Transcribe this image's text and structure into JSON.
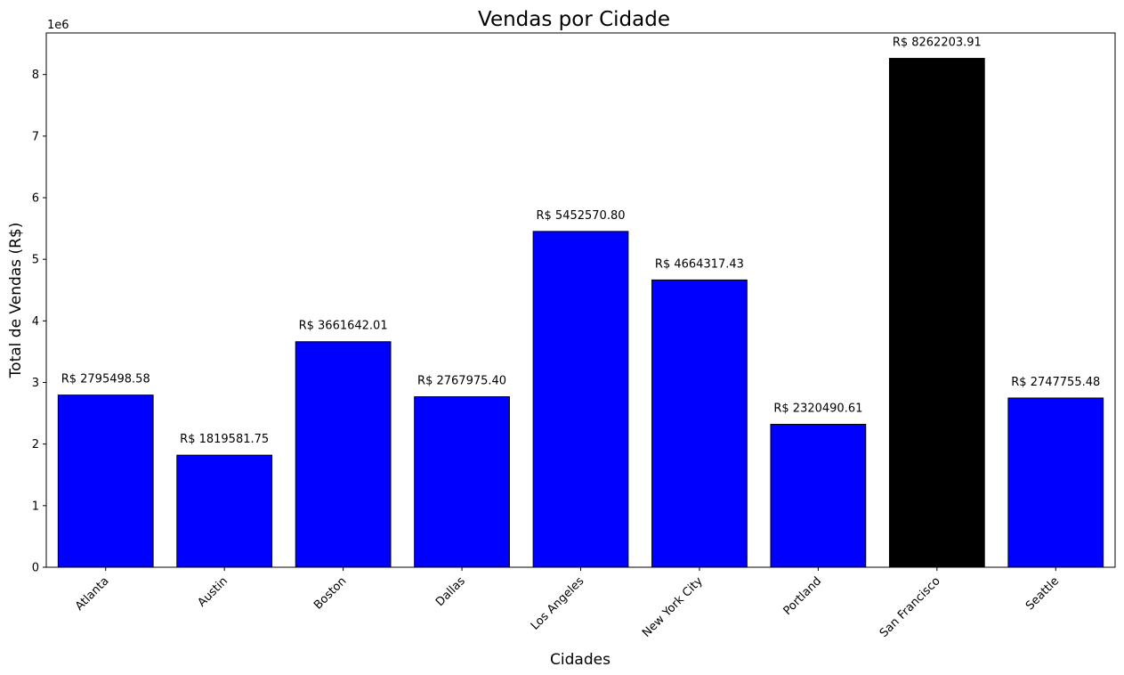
{
  "chart_data": {
    "type": "bar",
    "title": "Vendas por Cidade",
    "xlabel": "Cidades",
    "ylabel": "Total de Vendas (R$)",
    "offset_text": "1e6",
    "y_scale": 1000000,
    "ylim": [
      0,
      8.675
    ],
    "yticks": [
      0,
      1,
      2,
      3,
      4,
      5,
      6,
      7,
      8
    ],
    "categories": [
      "Atlanta",
      "Austin",
      "Boston",
      "Dallas",
      "Los Angeles",
      "New York City",
      "Portland",
      "San Francisco",
      "Seattle"
    ],
    "values": [
      2795498.58,
      1819581.75,
      3661642.01,
      2767975.4,
      5452570.8,
      4664317.43,
      2320490.61,
      8262203.91,
      2747755.48
    ],
    "data_labels": [
      "R$ 2795498.58",
      "R$ 1819581.75",
      "R$ 3661642.01",
      "R$ 2767975.40",
      "R$ 5452570.80",
      "R$ 4664317.43",
      "R$ 2320490.61",
      "R$ 8262203.91",
      "R$ 2747755.48"
    ],
    "bar_colors": [
      "#0000ff",
      "#0000ff",
      "#0000ff",
      "#0000ff",
      "#0000ff",
      "#0000ff",
      "#0000ff",
      "#000000",
      "#0000ff"
    ],
    "edge_color": "#000000",
    "grid": false,
    "legend": "none"
  }
}
